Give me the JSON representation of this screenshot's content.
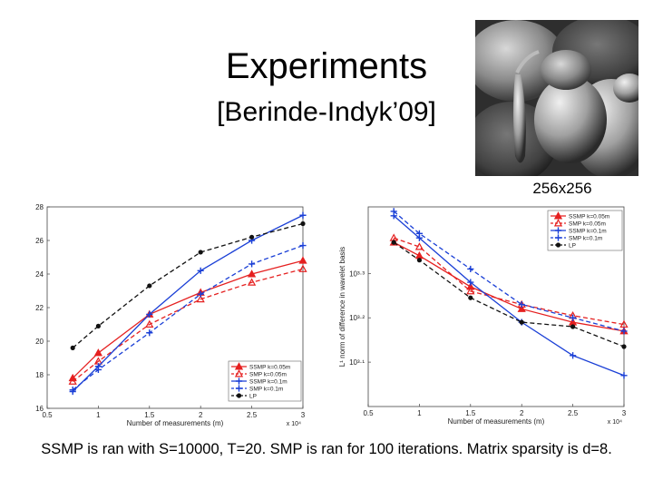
{
  "slide": {
    "title": "Experiments",
    "subtitle": "[Berinde-Indyk’09]",
    "image_caption": "256x256",
    "footer": "SSMP is ran with S=10000, T=20. SMP is ran for 100 iterations. Matrix sparsity is d=8."
  },
  "chart_data": [
    {
      "type": "line",
      "xlabel": "Number of measurements (m)",
      "x_exponent_label": "x 10⁴",
      "ylabel": "SNR",
      "xlim": [
        0.5,
        3
      ],
      "ylim": [
        16,
        28
      ],
      "xticks": [
        0.5,
        1,
        1.5,
        2,
        2.5,
        3
      ],
      "yticks": [
        16,
        18,
        20,
        22,
        24,
        26,
        28
      ],
      "legend_position": "bottom-right",
      "x": [
        0.75,
        1,
        1.5,
        2,
        2.5,
        3
      ],
      "series": [
        {
          "name": "SSMP k=0.05m",
          "color": "#e52020",
          "dash": "solid",
          "marker": "triangle",
          "values": [
            17.8,
            19.3,
            21.6,
            22.9,
            24.0,
            24.8
          ]
        },
        {
          "name": "SMP k=0.05m",
          "color": "#e52020",
          "dash": "dashed",
          "marker": "triangle-open",
          "values": [
            17.6,
            18.8,
            21.0,
            22.5,
            23.5,
            24.3
          ]
        },
        {
          "name": "SSMP k=0.1m",
          "color": "#1a3fd6",
          "dash": "solid",
          "marker": "plus",
          "values": [
            17.0,
            18.5,
            21.6,
            24.2,
            26.0,
            27.5
          ]
        },
        {
          "name": "SMP k=0.1m",
          "color": "#1a3fd6",
          "dash": "dashed",
          "marker": "plus",
          "values": [
            17.1,
            18.3,
            20.5,
            22.8,
            24.6,
            25.7
          ]
        },
        {
          "name": "LP",
          "color": "#111111",
          "dash": "dashed",
          "marker": "dot",
          "values": [
            19.6,
            20.9,
            23.3,
            25.3,
            26.2,
            27.0
          ]
        }
      ]
    },
    {
      "type": "line",
      "xlabel": "Number of measurements (m)",
      "x_exponent_label": "x 10⁴",
      "ylabel": "L¹ norm of difference in wavelet basis",
      "xlim": [
        0.5,
        3
      ],
      "ylim": [
        10,
        10.45
      ],
      "y_scale": "log",
      "xticks": [
        0.5,
        1,
        1.5,
        2,
        2.5,
        3
      ],
      "yticks": [
        {
          "value": 10.1,
          "label": "10³·¹"
        },
        {
          "value": 10.2,
          "label": "10³·²"
        },
        {
          "value": 10.3,
          "label": "10³·³"
        }
      ],
      "legend_position": "top-right",
      "x": [
        0.75,
        1,
        1.5,
        2,
        2.5,
        3
      ],
      "series": [
        {
          "name": "SSMP k=0.05m",
          "color": "#e52020",
          "dash": "solid",
          "marker": "triangle",
          "values": [
            10.37,
            10.34,
            10.27,
            10.22,
            10.19,
            10.17
          ]
        },
        {
          "name": "SMP k=0.05m",
          "color": "#e52020",
          "dash": "dashed",
          "marker": "triangle-open",
          "values": [
            10.38,
            10.36,
            10.26,
            10.23,
            10.205,
            10.185
          ]
        },
        {
          "name": "SSMP k=0.1m",
          "color": "#1a3fd6",
          "dash": "solid",
          "marker": "plus",
          "values": [
            10.43,
            10.38,
            10.28,
            10.19,
            10.115,
            10.07
          ]
        },
        {
          "name": "SMP k=0.1m",
          "color": "#1a3fd6",
          "dash": "dashed",
          "marker": "plus",
          "values": [
            10.44,
            10.39,
            10.31,
            10.23,
            10.2,
            10.17
          ]
        },
        {
          "name": "LP",
          "color": "#111111",
          "dash": "dashed",
          "marker": "dot",
          "values": [
            10.37,
            10.33,
            10.245,
            10.19,
            10.18,
            10.135
          ]
        }
      ]
    }
  ]
}
